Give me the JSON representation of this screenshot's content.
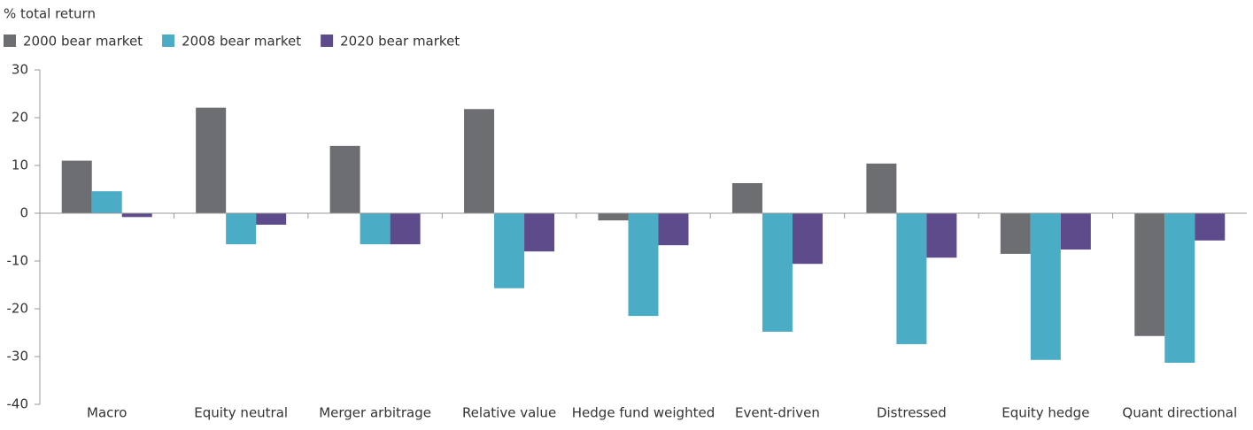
{
  "chart_data": {
    "type": "bar",
    "y_label": "% total return",
    "categories": [
      "Macro",
      "Equity neutral",
      "Merger arbitrage",
      "Relative value",
      "Hedge fund weighted",
      "Event-driven",
      "Distressed",
      "Equity hedge",
      "Quant directional"
    ],
    "series": [
      {
        "name": "2000 bear market",
        "color": "#6d6e71",
        "values": [
          11,
          22.1,
          14.1,
          21.8,
          -1.5,
          6.3,
          10.4,
          -8.5,
          -25.7
        ]
      },
      {
        "name": "2008 bear market",
        "color": "#4bacc6",
        "values": [
          4.6,
          -6.5,
          -6.5,
          -15.7,
          -21.5,
          -24.8,
          -27.4,
          -30.7,
          -31.3
        ]
      },
      {
        "name": "2020 bear market",
        "color": "#5e4b8b",
        "values": [
          -0.8,
          -2.4,
          -6.5,
          -8,
          -6.7,
          -10.6,
          -9.3,
          -7.6,
          -5.7
        ]
      }
    ],
    "ylim": [
      -40,
      30
    ],
    "yticks": [
      -40,
      -30,
      -20,
      -10,
      0,
      10,
      20,
      30
    ],
    "legend": "top-left"
  }
}
